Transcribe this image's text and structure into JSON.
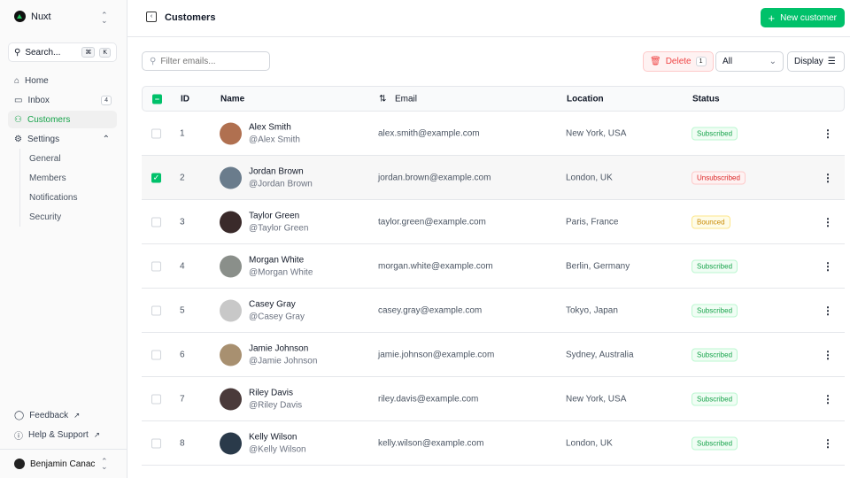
{
  "sidebar": {
    "team": "Nuxt",
    "search_placeholder": "Search...",
    "kbd1": "⌘",
    "kbd2": "K",
    "items": [
      {
        "label": "Home"
      },
      {
        "label": "Inbox",
        "badge": "4"
      },
      {
        "label": "Customers"
      },
      {
        "label": "Settings"
      }
    ],
    "settings_sub": [
      "General",
      "Members",
      "Notifications",
      "Security"
    ],
    "feedback": "Feedback",
    "help": "Help & Support",
    "user": "Benjamin Canac"
  },
  "header": {
    "title": "Customers",
    "new_button": "New customer"
  },
  "toolbar": {
    "filter_placeholder": "Filter emails...",
    "delete_label": "Delete",
    "delete_count": "1",
    "status_filter": "All",
    "display_label": "Display"
  },
  "table": {
    "headers": {
      "id": "ID",
      "name": "Name",
      "email": "Email",
      "location": "Location",
      "status": "Status"
    },
    "rows": [
      {
        "id": "1",
        "name": "Alex Smith",
        "username": "@Alex Smith",
        "email": "alex.smith@example.com",
        "location": "New York, USA",
        "status": "Subscribed",
        "selected": false,
        "avatar": "#b07050"
      },
      {
        "id": "2",
        "name": "Jordan Brown",
        "username": "@Jordan Brown",
        "email": "jordan.brown@example.com",
        "location": "London, UK",
        "status": "Unsubscribed",
        "selected": true,
        "avatar": "#6a7c8c"
      },
      {
        "id": "3",
        "name": "Taylor Green",
        "username": "@Taylor Green",
        "email": "taylor.green@example.com",
        "location": "Paris, France",
        "status": "Bounced",
        "selected": false,
        "avatar": "#3a2a2a"
      },
      {
        "id": "4",
        "name": "Morgan White",
        "username": "@Morgan White",
        "email": "morgan.white@example.com",
        "location": "Berlin, Germany",
        "status": "Subscribed",
        "selected": false,
        "avatar": "#8a8f8a"
      },
      {
        "id": "5",
        "name": "Casey Gray",
        "username": "@Casey Gray",
        "email": "casey.gray@example.com",
        "location": "Tokyo, Japan",
        "status": "Subscribed",
        "selected": false,
        "avatar": "#c8c8c8"
      },
      {
        "id": "6",
        "name": "Jamie Johnson",
        "username": "@Jamie Johnson",
        "email": "jamie.johnson@example.com",
        "location": "Sydney, Australia",
        "status": "Subscribed",
        "selected": false,
        "avatar": "#a89070"
      },
      {
        "id": "7",
        "name": "Riley Davis",
        "username": "@Riley Davis",
        "email": "riley.davis@example.com",
        "location": "New York, USA",
        "status": "Subscribed",
        "selected": false,
        "avatar": "#4a3a3a"
      },
      {
        "id": "8",
        "name": "Kelly Wilson",
        "username": "@Kelly Wilson",
        "email": "kelly.wilson@example.com",
        "location": "London, UK",
        "status": "Subscribed",
        "selected": false,
        "avatar": "#2a3a4a"
      }
    ]
  },
  "colors": {
    "primary": "#00c16a",
    "error": "#ef4444",
    "warning": "#ca8a04"
  }
}
